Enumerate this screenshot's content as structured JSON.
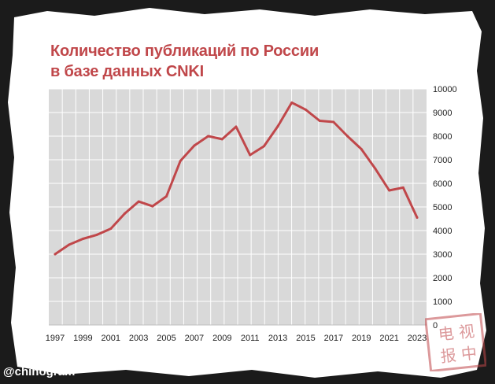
{
  "watermark": "@chinogram",
  "stamp_text": "电视报中",
  "colors": {
    "line": "#c0474a",
    "plot_bg": "#d9d9d9",
    "grid": "#ffffff",
    "title": "#c0474a"
  },
  "chart_data": {
    "type": "line",
    "title_lines": [
      "Количество публикаций по России",
      "в базе данных CNKI"
    ],
    "xlabel": "",
    "ylabel": "",
    "x": [
      1997,
      1998,
      1999,
      2000,
      2001,
      2002,
      2003,
      2004,
      2005,
      2006,
      2007,
      2008,
      2009,
      2010,
      2011,
      2012,
      2013,
      2014,
      2015,
      2016,
      2017,
      2018,
      2019,
      2020,
      2021,
      2022,
      2023
    ],
    "series": [
      {
        "values": [
          3000,
          3400,
          3650,
          3820,
          4080,
          4720,
          5230,
          5030,
          5450,
          6950,
          7600,
          8000,
          7870,
          8400,
          7200,
          7570,
          8420,
          9420,
          9120,
          8650,
          8600,
          8000,
          7450,
          6620,
          5700,
          5820,
          4550
        ]
      }
    ],
    "xticks": [
      "1997",
      "1999",
      "2001",
      "2003",
      "2005",
      "2007",
      "2009",
      "2011",
      "2013",
      "2015",
      "2017",
      "2019",
      "2021",
      "2023"
    ],
    "yticks": [
      "0",
      "1000",
      "2000",
      "3000",
      "4000",
      "5000",
      "6000",
      "7000",
      "8000",
      "9000",
      "10000"
    ],
    "ylim": [
      0,
      10000
    ],
    "xlim": [
      1997,
      2023
    ],
    "grid": true,
    "yaxis_position": "right"
  }
}
